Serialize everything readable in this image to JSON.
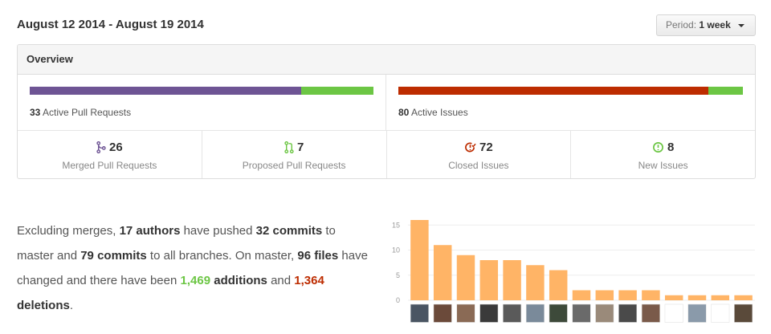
{
  "header": {
    "date_range": "August 12 2014 - August 19 2014"
  },
  "period": {
    "label": "Period:",
    "value": "1 week"
  },
  "overview": {
    "title": "Overview",
    "pull_requests": {
      "count": "33",
      "label": "Active Pull Requests",
      "merged_fraction": 0.79,
      "colors": [
        "#6e5494",
        "#6cc644"
      ]
    },
    "issues": {
      "count": "80",
      "label": "Active Issues",
      "closed_fraction": 0.9,
      "colors": [
        "#bd2c00",
        "#6cc644"
      ]
    },
    "stats": [
      {
        "value": "26",
        "label": "Merged Pull Requests",
        "icon": "git-merge-icon",
        "color": "#6e5494"
      },
      {
        "value": "7",
        "label": "Proposed Pull Requests",
        "icon": "git-pull-request-icon",
        "color": "#6cc644"
      },
      {
        "value": "72",
        "label": "Closed Issues",
        "icon": "issue-closed-icon",
        "color": "#bd2c00"
      },
      {
        "value": "8",
        "label": "New Issues",
        "icon": "issue-opened-icon",
        "color": "#6cc644"
      }
    ]
  },
  "summary": {
    "p1": "Excluding merges, ",
    "authors": "17 authors",
    "p2": " have pushed ",
    "commits_master": "32 commits",
    "p3": " to master and ",
    "commits_all": "79 commits",
    "p4": " to all branches. On master, ",
    "files": "96 files",
    "p5": " have changed and there have been ",
    "additions_num": "1,469",
    "additions_word": "additions",
    "p6": " and ",
    "deletions_num": "1,364",
    "deletions_word": "deletions",
    "p7": "."
  },
  "chart_data": {
    "type": "bar",
    "values": [
      16,
      11,
      9,
      8,
      8,
      7,
      6,
      2,
      2,
      2,
      2,
      1,
      1,
      1,
      1
    ],
    "y_ticks": [
      "0",
      "5",
      "10",
      "15"
    ],
    "ylim": [
      0,
      16
    ],
    "bar_color": "#ffb466",
    "grid": true
  }
}
